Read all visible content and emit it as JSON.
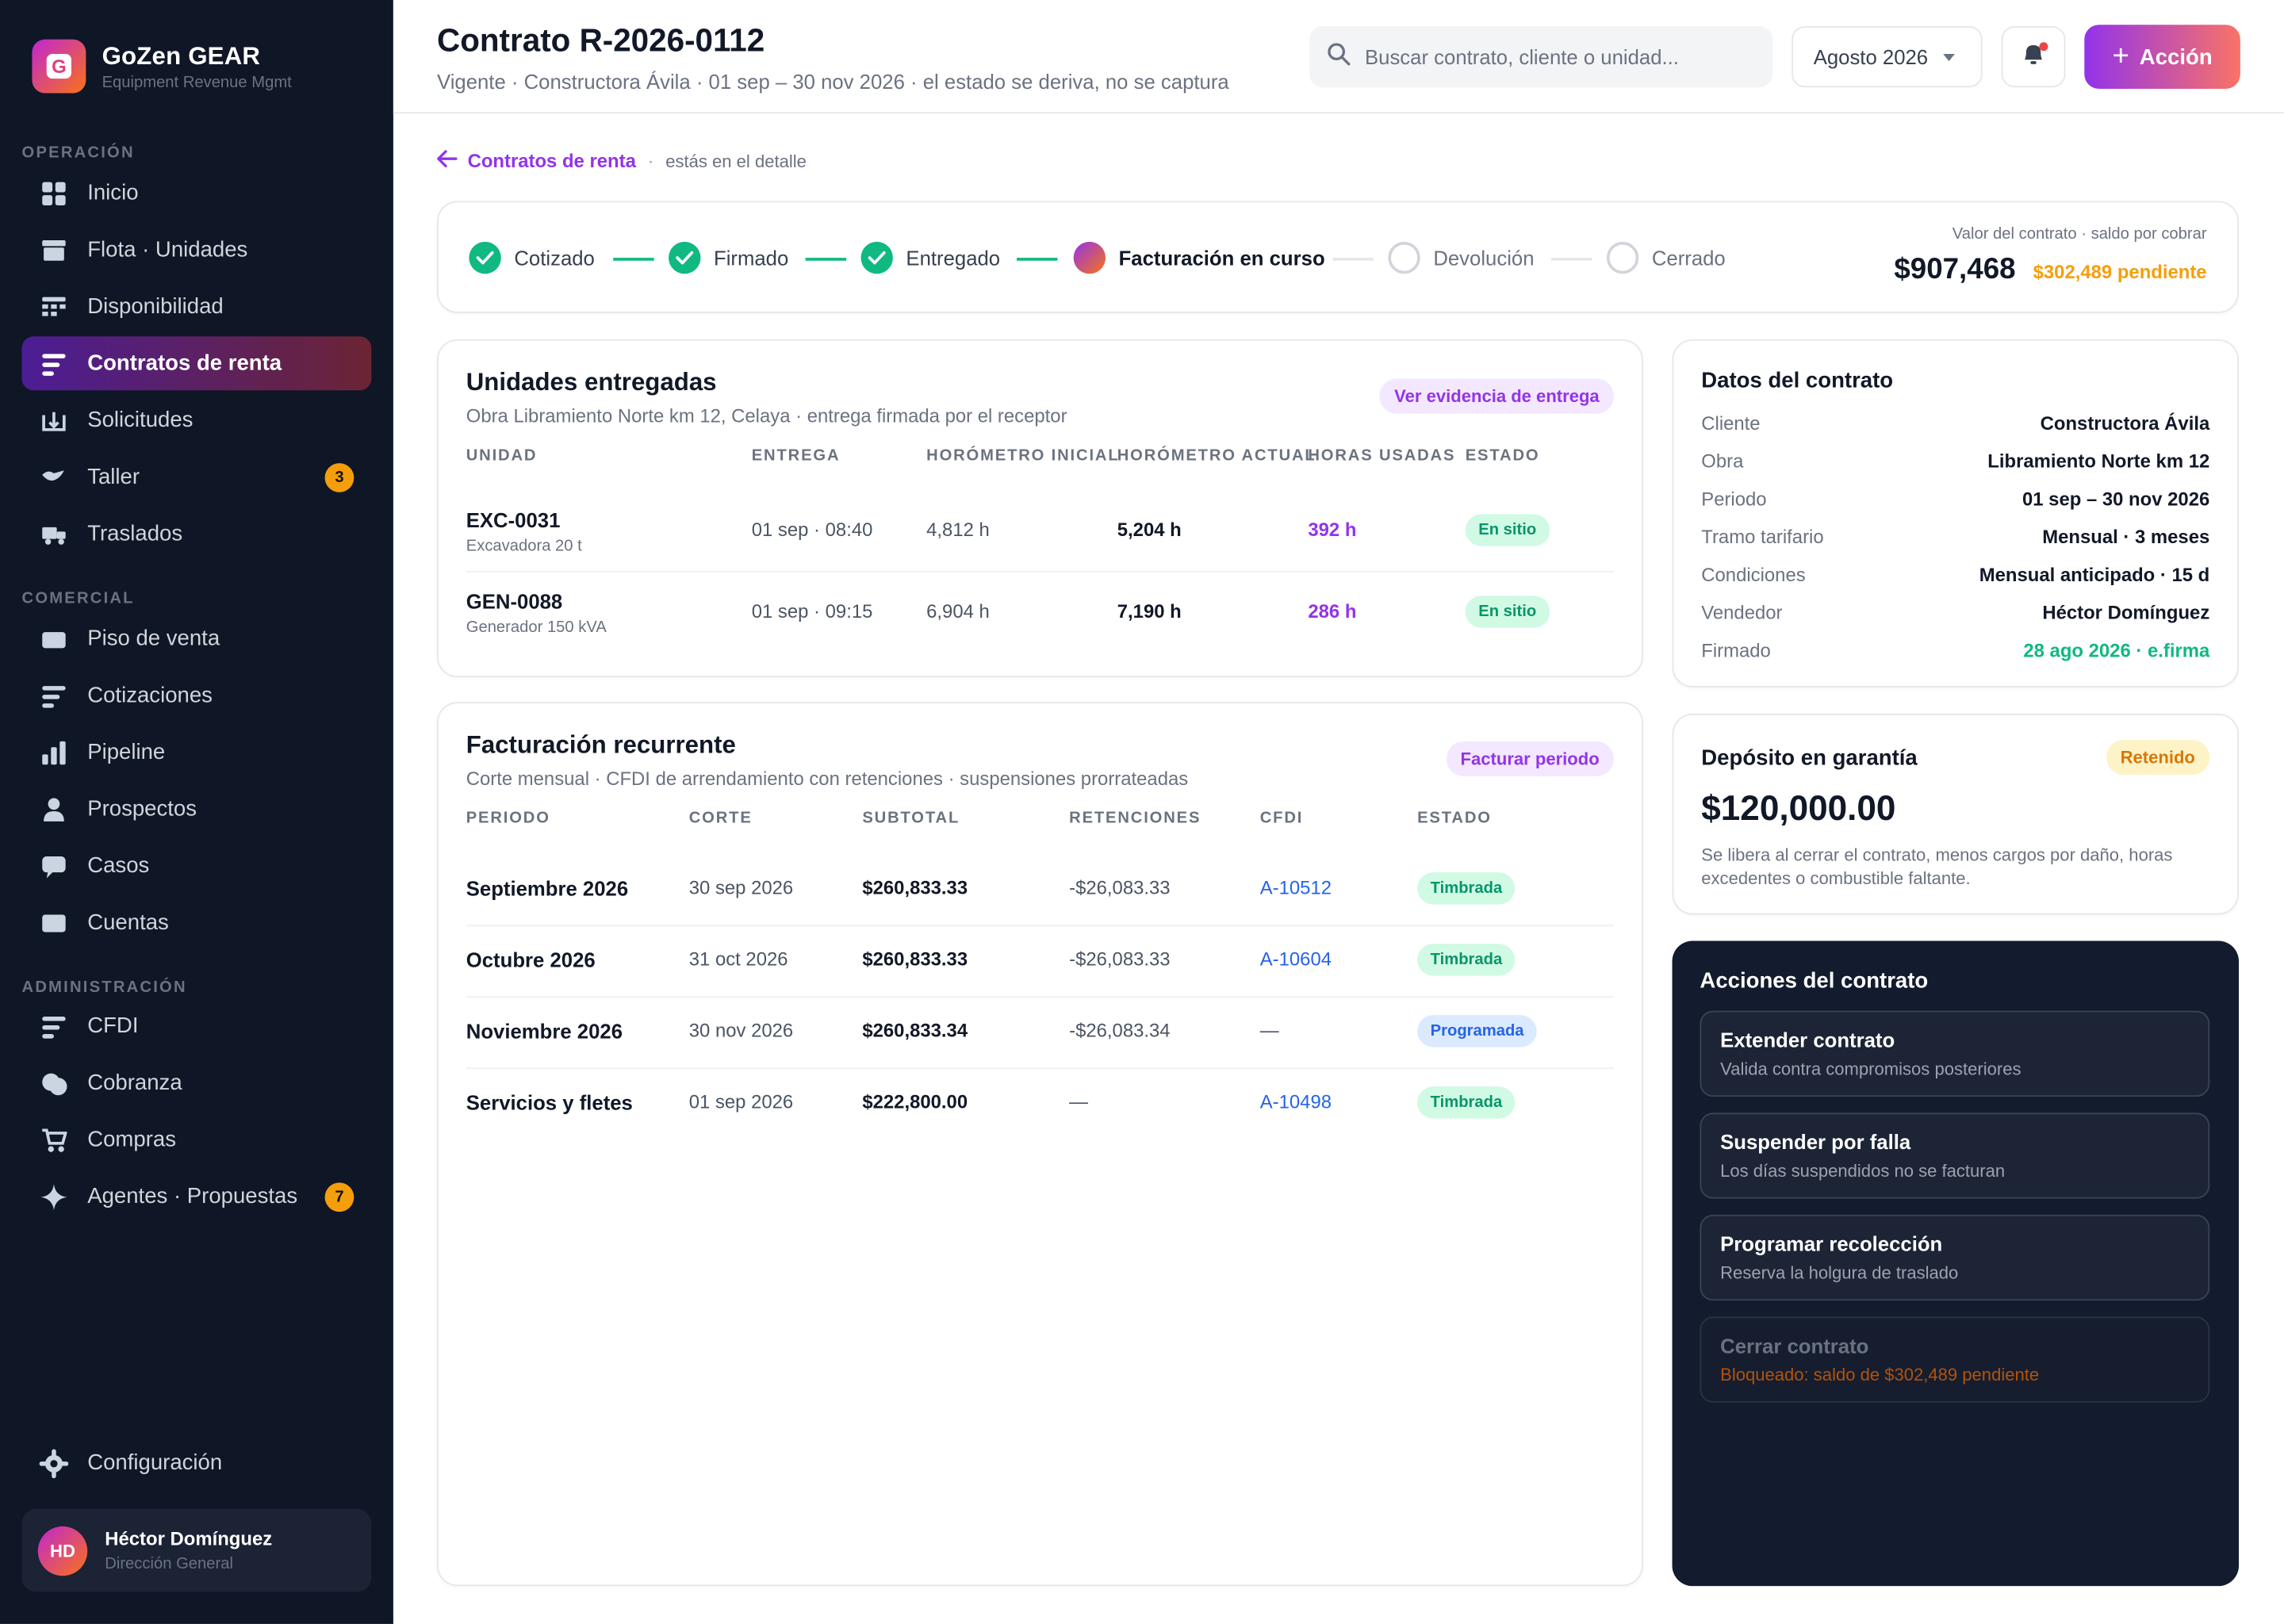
{
  "app": {
    "logo_letter": "G",
    "name": "GoZen GEAR",
    "subtitle": "Equipment Revenue Mgmt"
  },
  "sidebar": {
    "sections": [
      "OPERACIÓN",
      "COMERCIAL",
      "ADMINISTRACIÓN"
    ],
    "items": [
      {
        "label": "Inicio",
        "icon": "grid-icon"
      },
      {
        "label": "Flota · Unidades",
        "icon": "fleet-icon"
      },
      {
        "label": "Disponibilidad",
        "icon": "calendar-dots-icon"
      },
      {
        "label": "Contratos de renta",
        "icon": "list-icon",
        "active": true
      },
      {
        "label": "Solicitudes",
        "icon": "inbox-icon"
      },
      {
        "label": "Taller",
        "icon": "wrench-icon",
        "badge": "3"
      },
      {
        "label": "Traslados",
        "icon": "truck-icon"
      },
      {
        "label": "Piso de venta",
        "icon": "store-icon"
      },
      {
        "label": "Cotizaciones",
        "icon": "list-icon"
      },
      {
        "label": "Pipeline",
        "icon": "bar-chart-icon"
      },
      {
        "label": "Prospectos",
        "icon": "person-icon"
      },
      {
        "label": "Casos",
        "icon": "chat-icon"
      },
      {
        "label": "Cuentas",
        "icon": "card-icon"
      },
      {
        "label": "CFDI",
        "icon": "list-icon"
      },
      {
        "label": "Cobranza",
        "icon": "coins-icon"
      },
      {
        "label": "Compras",
        "icon": "cart-icon"
      },
      {
        "label": "Agentes · Propuestas",
        "icon": "sparkle-icon",
        "badge": "7"
      }
    ],
    "settings": {
      "label": "Configuración",
      "icon": "gear-icon"
    },
    "user": {
      "initials": "HD",
      "name": "Héctor Domínguez",
      "role": "Dirección General"
    }
  },
  "header": {
    "title": "Contrato R-2026-0112",
    "subtitle": "Vigente · Constructora Ávila · 01 sep – 30 nov 2026 · el estado se deriva, no se captura",
    "search_placeholder": "Buscar contrato, cliente o unidad...",
    "month": "Agosto 2026",
    "action_label": "Acción"
  },
  "breadcrumb": {
    "back_label": "Contratos de renta",
    "separator": "·",
    "here": "estás en el detalle"
  },
  "stepper": {
    "steps": [
      {
        "label": "Cotizado",
        "status": "done"
      },
      {
        "label": "Firmado",
        "status": "done"
      },
      {
        "label": "Entregado",
        "status": "done"
      },
      {
        "label": "Facturación en curso",
        "status": "current"
      },
      {
        "label": "Devolución",
        "status": "todo"
      },
      {
        "label": "Cerrado",
        "status": "todo"
      }
    ],
    "value_caption": "Valor del contrato · saldo por cobrar",
    "value": "$907,468",
    "pending": "$302,489 pendiente"
  },
  "units": {
    "title": "Unidades entregadas",
    "subtitle": "Obra Libramiento Norte km 12, Celaya · entrega firmada por el receptor",
    "evidence_button": "Ver evidencia de entrega",
    "columns": [
      "UNIDAD",
      "ENTREGA",
      "HORÓMETRO INICIAL",
      "HORÓMETRO ACTUAL",
      "HORAS USADAS",
      "ESTADO"
    ],
    "rows": [
      {
        "unit": "EXC-0031",
        "desc": "Excavadora 20 t",
        "delivery": "01 sep · 08:40",
        "start": "4,812 h",
        "current": "5,204 h",
        "used": "392 h",
        "status": "En sitio"
      },
      {
        "unit": "GEN-0088",
        "desc": "Generador 150 kVA",
        "delivery": "01 sep · 09:15",
        "start": "6,904 h",
        "current": "7,190 h",
        "used": "286 h",
        "status": "En sitio"
      }
    ]
  },
  "billing": {
    "title": "Facturación recurrente",
    "subtitle": "Corte mensual · CFDI de arrendamiento con retenciones · suspensiones prorrateadas",
    "bill_button": "Facturar periodo",
    "columns": [
      "PERIODO",
      "CORTE",
      "SUBTOTAL",
      "RETENCIONES",
      "CFDI",
      "ESTADO"
    ],
    "rows": [
      {
        "period": "Septiembre 2026",
        "cut": "30 sep 2026",
        "subtotal": "$260,833.33",
        "ret": "-$26,083.33",
        "cfdi": "A-10512",
        "status": "Timbrada",
        "tone": "green"
      },
      {
        "period": "Octubre 2026",
        "cut": "31 oct 2026",
        "subtotal": "$260,833.33",
        "ret": "-$26,083.33",
        "cfdi": "A-10604",
        "status": "Timbrada",
        "tone": "green"
      },
      {
        "period": "Noviembre 2026",
        "cut": "30 nov 2026",
        "subtotal": "$260,833.34",
        "ret": "-$26,083.34",
        "cfdi": "—",
        "status": "Programada",
        "tone": "blue"
      },
      {
        "period": "Servicios y fletes",
        "cut": "01 sep 2026",
        "subtotal": "$222,800.00",
        "ret": "—",
        "cfdi": "A-10498",
        "status": "Timbrada",
        "tone": "green"
      }
    ]
  },
  "contract_data": {
    "title": "Datos del contrato",
    "fields": [
      {
        "label": "Cliente",
        "value": "Constructora Ávila"
      },
      {
        "label": "Obra",
        "value": "Libramiento Norte km 12"
      },
      {
        "label": "Periodo",
        "value": "01 sep – 30 nov 2026"
      },
      {
        "label": "Tramo tarifario",
        "value": "Mensual · 3 meses"
      },
      {
        "label": "Condiciones",
        "value": "Mensual anticipado · 15 d"
      },
      {
        "label": "Vendedor",
        "value": "Héctor Domínguez"
      },
      {
        "label": "Firmado",
        "value": "28 ago 2026 · e.firma",
        "accent": "green"
      }
    ]
  },
  "deposit": {
    "title": "Depósito en garantía",
    "badge": "Retenido",
    "amount": "$120,000.00",
    "note": "Se libera al cerrar el contrato, menos cargos por daño, horas excedentes o combustible faltante."
  },
  "actions": {
    "title": "Acciones del contrato",
    "items": [
      {
        "title": "Extender contrato",
        "desc": "Valida contra compromisos posteriores",
        "enabled": true
      },
      {
        "title": "Suspender por falla",
        "desc": "Los días suspendidos no se facturan",
        "enabled": true
      },
      {
        "title": "Programar recolección",
        "desc": "Reserva la holgura de traslado",
        "enabled": true
      },
      {
        "title": "Cerrar contrato",
        "desc": "Bloqueado: saldo de $302,489 pendiente",
        "enabled": false
      }
    ]
  },
  "colors": {
    "accent": "#9333ea",
    "accent_end": "#f97316",
    "success": "#10b981",
    "warning": "#f59e0b",
    "sidebar_bg": "#0f1626",
    "link": "#2563eb"
  }
}
